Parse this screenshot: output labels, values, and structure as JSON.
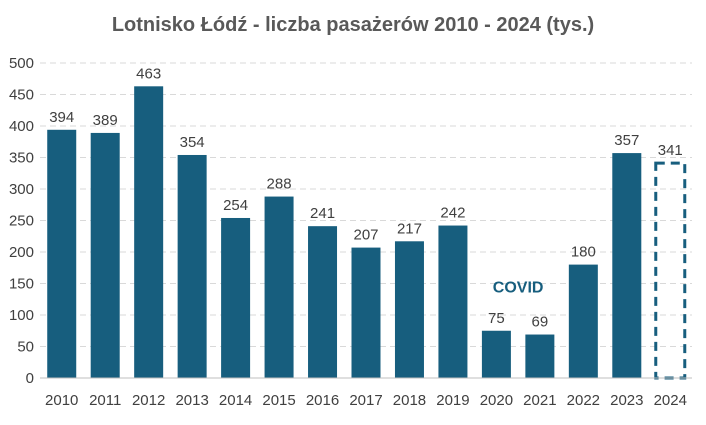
{
  "chart_data": {
    "type": "bar",
    "title": "Lotnisko Łódź - liczba pasażerów 2010 - 2024 (tys.)",
    "xlabel": "",
    "ylabel": "",
    "categories": [
      "2010",
      "2011",
      "2012",
      "2013",
      "2014",
      "2015",
      "2016",
      "2017",
      "2018",
      "2019",
      "2020",
      "2021",
      "2022",
      "2023",
      "2024"
    ],
    "values": [
      394,
      389,
      463,
      354,
      254,
      288,
      241,
      207,
      217,
      242,
      75,
      69,
      180,
      357,
      341
    ],
    "ylim": [
      0,
      500
    ],
    "yticks": [
      0,
      50,
      100,
      150,
      200,
      250,
      300,
      350,
      400,
      450,
      500
    ],
    "grid": true,
    "legend": "none",
    "bar_color": "#175e7e",
    "estimate_categories": [
      "2024"
    ],
    "annotations": [
      {
        "text": "COVID",
        "category": "2020",
        "value": 145,
        "color": "#175e7e"
      }
    ]
  }
}
